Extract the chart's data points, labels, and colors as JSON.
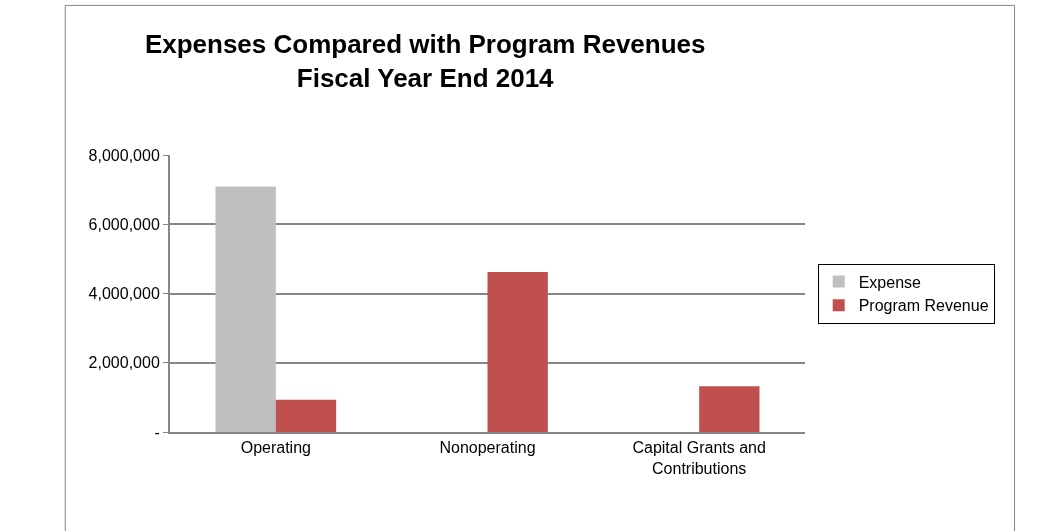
{
  "chart_data": {
    "type": "bar",
    "title": "Expenses Compared with Program Revenues\nFiscal Year End 2014",
    "categories": [
      "Operating",
      "Nonoperating",
      "Capital Grants and\nContributions"
    ],
    "series": [
      {
        "name": "Expense",
        "color": "#bfbfbf",
        "values": [
          7090000,
          null,
          null
        ]
      },
      {
        "name": "Program Revenue",
        "color": "#c0504d",
        "values": [
          930000,
          4620000,
          1320000
        ]
      }
    ],
    "ylim": [
      0,
      8000000
    ],
    "yticks": [
      {
        "value": 0,
        "label": "-"
      },
      {
        "value": 2000000,
        "label": "2,000,000"
      },
      {
        "value": 4000000,
        "label": "4,000,000"
      },
      {
        "value": 6000000,
        "label": "6,000,000"
      },
      {
        "value": 8000000,
        "label": "8,000,000"
      }
    ],
    "grid": "y",
    "legend": "right"
  }
}
